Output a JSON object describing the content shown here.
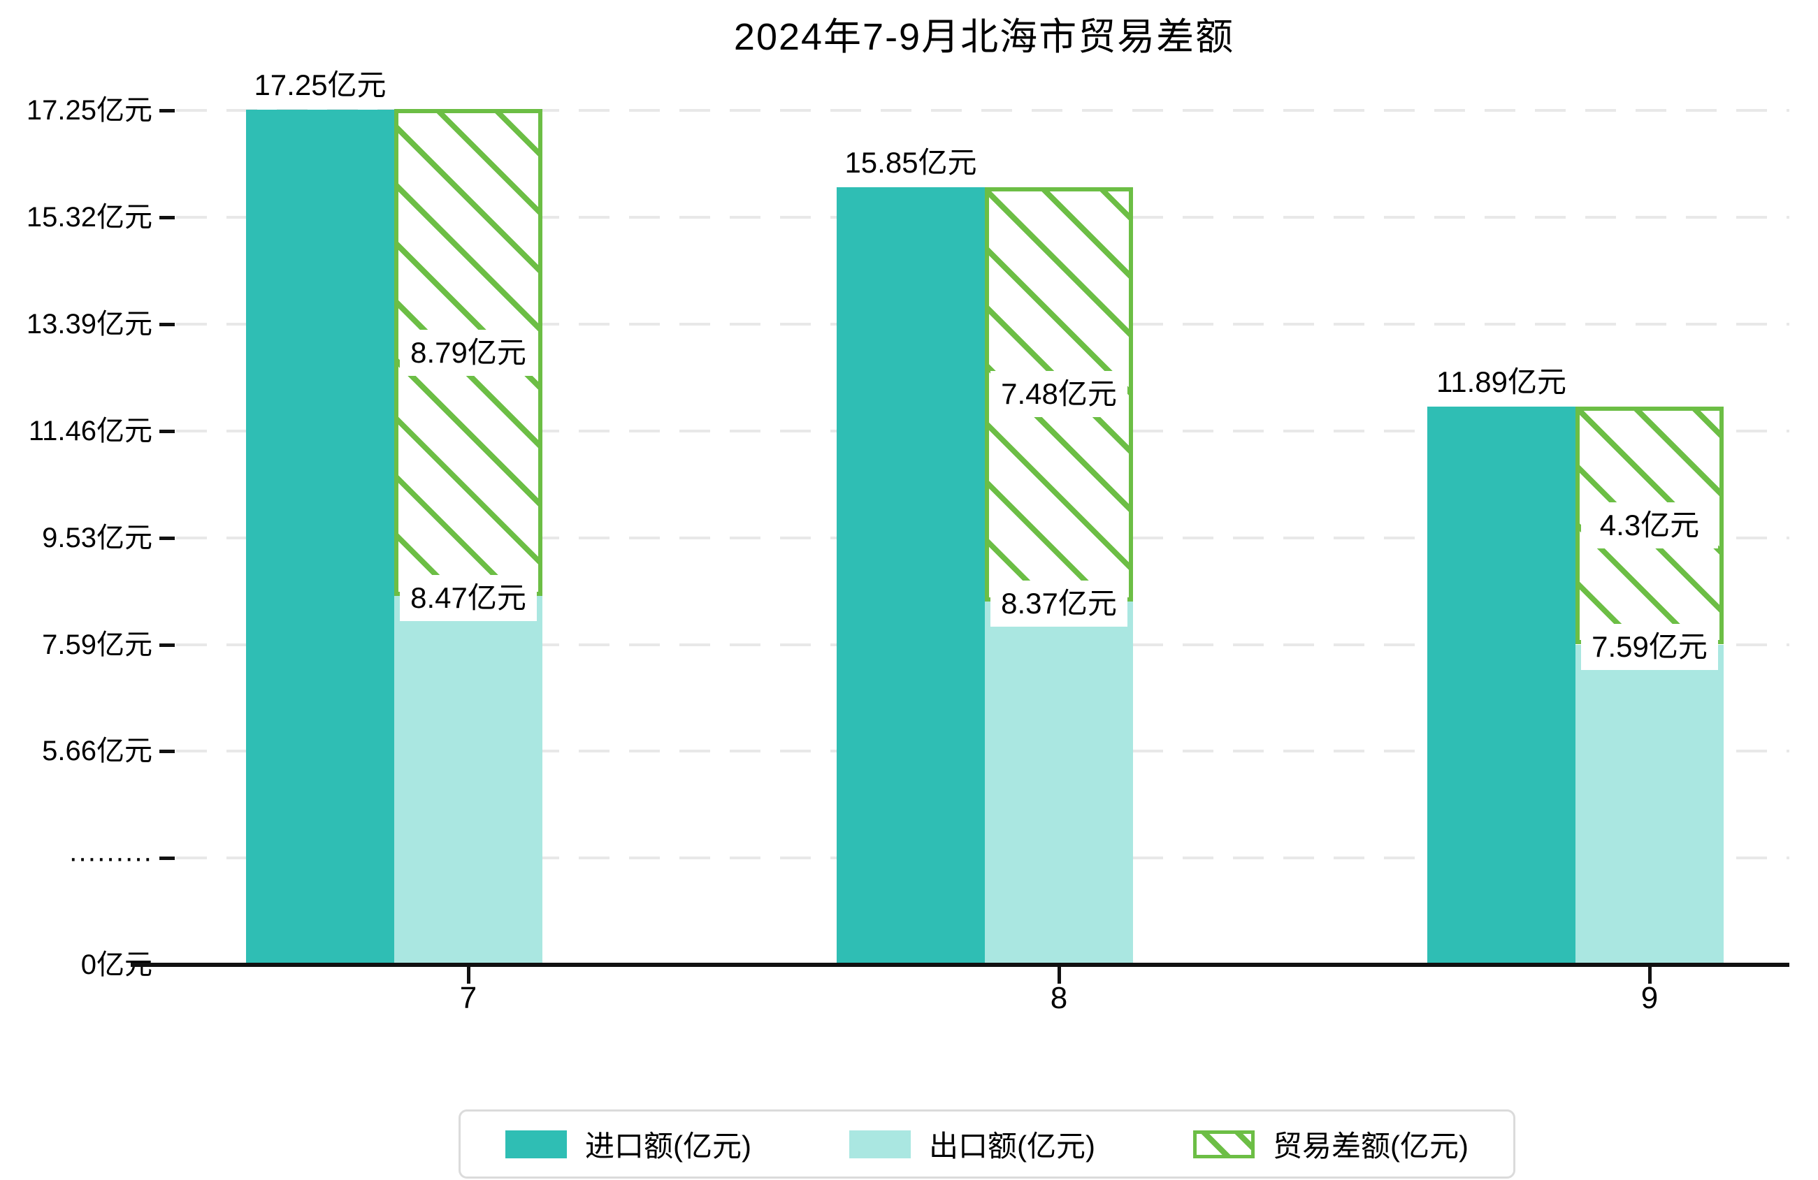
{
  "title": "2024年7-9月北海市贸易差额",
  "y_axis": {
    "tick_labels": [
      "17.25亿元",
      "15.32亿元",
      "13.39亿元",
      "11.46亿元",
      "9.53亿元",
      "7.59亿元",
      "5.66亿元",
      "·········",
      "0亿元"
    ],
    "tick_values": [
      17.25,
      15.32,
      13.39,
      11.46,
      9.53,
      7.59,
      5.66,
      null,
      0
    ],
    "axis_break_label": "·········",
    "unit": "亿元"
  },
  "x_axis": {
    "tick_labels": [
      "7",
      "8",
      "9"
    ]
  },
  "chart_data": {
    "type": "bar",
    "title": "2024年7-9月北海市贸易差额",
    "categories": [
      "7",
      "8",
      "9"
    ],
    "series": [
      {
        "name": "进口额(亿元)",
        "values": [
          17.25,
          15.85,
          11.89
        ],
        "labels": [
          "17.25亿元",
          "15.85亿元",
          "11.89亿元"
        ],
        "color": "#2FBEB4",
        "style": "solid"
      },
      {
        "name": "出口额(亿元)",
        "values": [
          8.47,
          8.37,
          7.59
        ],
        "labels": [
          "8.47亿元",
          "8.37亿元",
          "7.59亿元"
        ],
        "color": "#AAE7E1",
        "style": "solid"
      },
      {
        "name": "贸易差额(亿元)",
        "values": [
          8.79,
          7.48,
          4.3
        ],
        "labels": [
          "8.79亿元",
          "7.48亿元",
          "4.3亿元"
        ],
        "color": "#6CBE45",
        "style": "hatched",
        "stacked_on": "出口额(亿元)"
      }
    ],
    "xlabel": "",
    "ylabel": "亿元",
    "ylim": [
      0,
      17.25
    ],
    "y_tick_step": 1.93,
    "axis_break": {
      "between": [
        0,
        5.66
      ]
    },
    "grid": true,
    "legend_position": "bottom"
  },
  "legend": {
    "items": [
      {
        "label": "进口额(亿元)",
        "swatch": "solid-teal"
      },
      {
        "label": "出口额(亿元)",
        "swatch": "solid-light-teal"
      },
      {
        "label": "贸易差额(亿元)",
        "swatch": "green-hatched"
      }
    ]
  },
  "colors": {
    "import_bar": "#2FBEB4",
    "export_bar": "#AAE7E1",
    "diff_hatch": "#6CBE45",
    "gridline": "#E8E8E8",
    "axis": "#111111",
    "text": "#000000"
  }
}
